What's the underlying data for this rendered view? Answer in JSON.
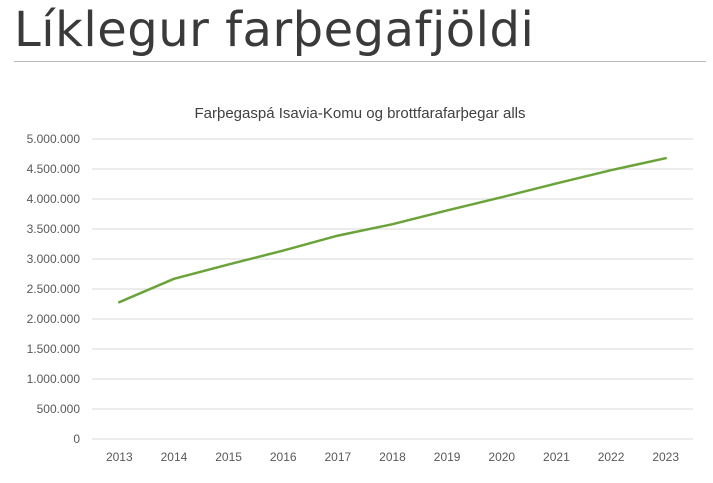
{
  "slide": {
    "title": "Líklegur farþegafjöldi"
  },
  "colors": {
    "series": "#6aa33a",
    "grid": "#d9d9d9",
    "axis_text": "#595959",
    "title_text": "#404040"
  },
  "chart_data": {
    "type": "line",
    "title": "Farþegaspá Isavia-Komu og brottfarafarþegar alls",
    "xlabel": "",
    "ylabel": "",
    "categories": [
      "2013",
      "2014",
      "2015",
      "2016",
      "2017",
      "2018",
      "2019",
      "2020",
      "2021",
      "2022",
      "2023"
    ],
    "series": [
      {
        "values": [
          2280000,
          2670000,
          2910000,
          3140000,
          3390000,
          3580000,
          3810000,
          4030000,
          4260000,
          4480000,
          4680000
        ]
      }
    ],
    "ylim": [
      0,
      5000000
    ],
    "yticks": [
      0,
      500000,
      1000000,
      1500000,
      2000000,
      2500000,
      3000000,
      3500000,
      4000000,
      4500000,
      5000000
    ],
    "ytick_labels": [
      "0",
      "500.000",
      "1.000.000",
      "1.500.000",
      "2.000.000",
      "2.500.000",
      "3.000.000",
      "3.500.000",
      "4.000.000",
      "4.500.000",
      "5.000.000"
    ],
    "grid": true,
    "legend": "none"
  }
}
